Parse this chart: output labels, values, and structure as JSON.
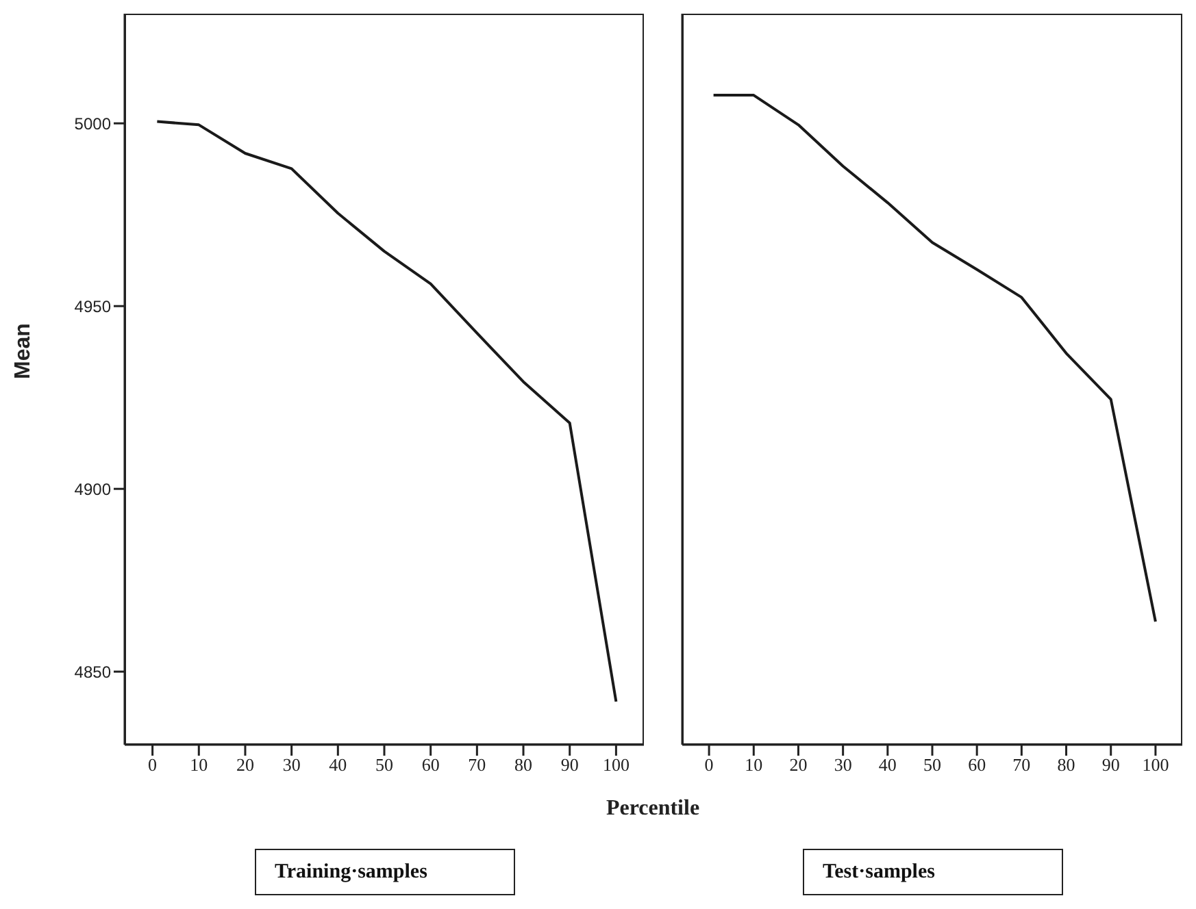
{
  "chart_data": [
    {
      "type": "line",
      "title": "Training·samples",
      "xlabel": "Percentile",
      "ylabel": "Mean",
      "x": [
        1,
        10,
        20,
        30,
        40,
        50,
        60,
        70,
        80,
        90,
        100
      ],
      "series": [
        {
          "color": "#1a1a1a",
          "values": [
            5000.5,
            4999.6,
            4991.8,
            4987.6,
            4975.4,
            4965,
            4956.1,
            4942.6,
            4929.3,
            4918,
            4841.8
          ]
        }
      ],
      "xlim": [
        -6,
        106
      ],
      "xticks": [
        0,
        10,
        20,
        30,
        40,
        50,
        60,
        70,
        80,
        90,
        100
      ],
      "ylim": [
        4830,
        5030
      ],
      "yticks": [
        4850,
        4900,
        4950,
        5000
      ],
      "grid": false,
      "legend": false,
      "marker": "none",
      "line_style": "solid"
    },
    {
      "type": "line",
      "title": "Test·samples",
      "x": [
        1,
        10,
        20,
        30,
        40,
        50,
        60,
        70,
        80,
        90,
        100
      ],
      "series": [
        {
          "color": "#1a1a1a",
          "values": [
            5007.7,
            5007.7,
            4999.6,
            4988.3,
            4978.3,
            4967.4,
            4960,
            4952.4,
            4937.1,
            4924.5,
            4863.7
          ]
        }
      ],
      "xlim": [
        -6,
        106
      ],
      "xticks": [
        0,
        10,
        20,
        30,
        40,
        50,
        60,
        70,
        80,
        90,
        100
      ],
      "ylim": [
        4830,
        5030
      ],
      "yticks": [
        4850,
        4900,
        4950,
        5000
      ],
      "grid": false,
      "legend": false,
      "marker": "none",
      "line_style": "solid",
      "tick_labels": "x"
    }
  ]
}
